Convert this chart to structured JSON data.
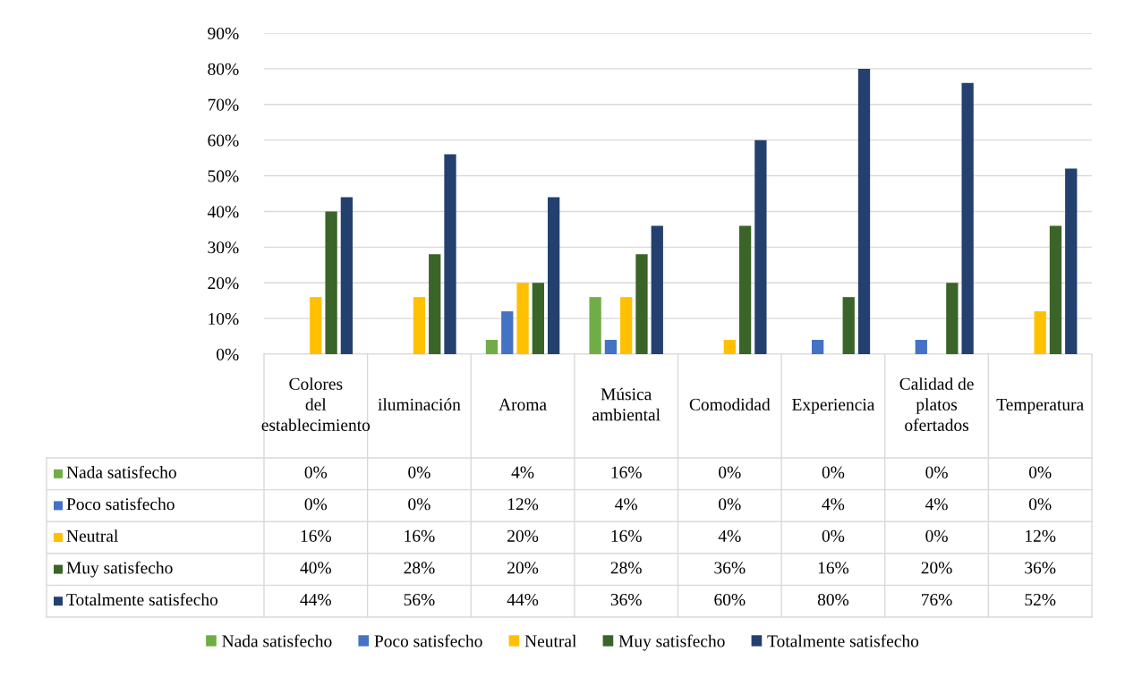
{
  "chart_data": {
    "type": "bar",
    "categories": [
      "Colores del establecimiento",
      "iluminación",
      "Aroma",
      "Música ambiental",
      "Comodidad",
      "Experiencia",
      "Calidad de platos ofertados",
      "Temperatura"
    ],
    "series": [
      {
        "name": "Nada satisfecho",
        "color": "#70ad47",
        "values": [
          0,
          0,
          4,
          16,
          0,
          0,
          0,
          0
        ],
        "value_labels": [
          "0%",
          "0%",
          "4%",
          "16%",
          "0%",
          "0%",
          "0%",
          "0%"
        ]
      },
      {
        "name": "Poco satisfecho",
        "color": "#4472c4",
        "values": [
          0,
          0,
          12,
          4,
          0,
          4,
          4,
          0
        ],
        "value_labels": [
          "0%",
          "0%",
          "12%",
          "4%",
          "0%",
          "4%",
          "4%",
          "0%"
        ]
      },
      {
        "name": "Neutral",
        "color": "#ffc000",
        "values": [
          16,
          16,
          20,
          16,
          4,
          0,
          0,
          12
        ],
        "value_labels": [
          "16%",
          "16%",
          "20%",
          "16%",
          "4%",
          "0%",
          "0%",
          "12%"
        ]
      },
      {
        "name": "Muy satisfecho",
        "color": "#3b6428",
        "values": [
          40,
          28,
          20,
          28,
          36,
          16,
          20,
          36
        ],
        "value_labels": [
          "40%",
          "28%",
          "20%",
          "28%",
          "36%",
          "16%",
          "20%",
          "36%"
        ]
      },
      {
        "name": "Totalmente satisfecho",
        "color": "#23406f",
        "values": [
          44,
          56,
          44,
          36,
          60,
          80,
          76,
          52
        ],
        "value_labels": [
          "44%",
          "56%",
          "44%",
          "36%",
          "60%",
          "80%",
          "76%",
          "52%"
        ]
      }
    ],
    "ylim": [
      0,
      90
    ],
    "yticks": [
      {
        "value": 0,
        "label": "0%"
      },
      {
        "value": 10,
        "label": "10%"
      },
      {
        "value": 20,
        "label": "20%"
      },
      {
        "value": 30,
        "label": "30%"
      },
      {
        "value": 40,
        "label": "40%"
      },
      {
        "value": 50,
        "label": "50%"
      },
      {
        "value": 60,
        "label": "60%"
      },
      {
        "value": 70,
        "label": "70%"
      },
      {
        "value": 80,
        "label": "80%"
      },
      {
        "value": 90,
        "label": "90%"
      }
    ],
    "grid": "y",
    "legend": "bottom"
  }
}
